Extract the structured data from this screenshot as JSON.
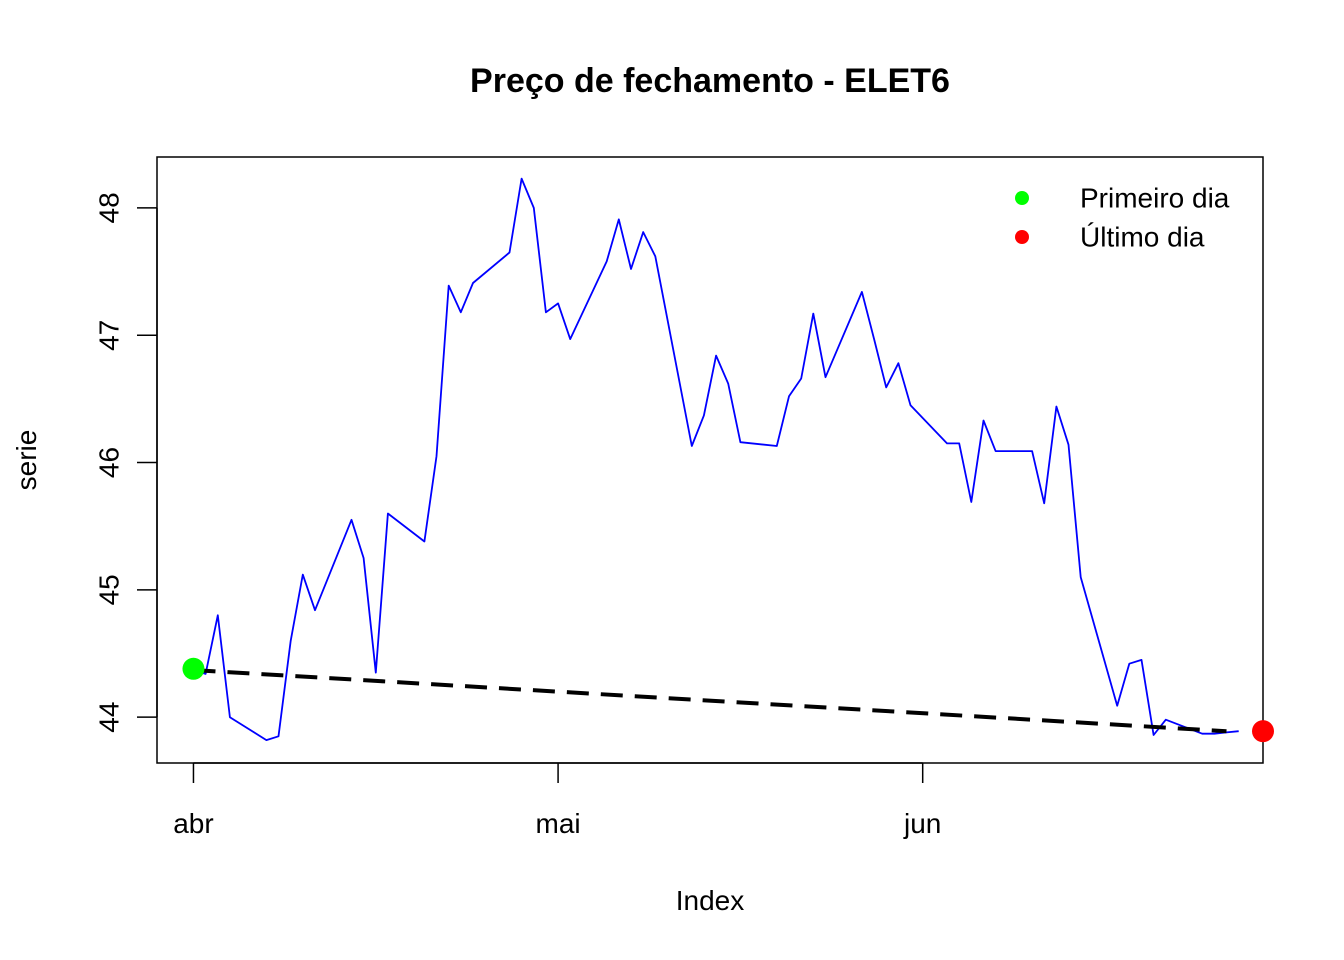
{
  "chart_data": {
    "type": "line",
    "title": "Preço de fechamento - ELET6",
    "xlabel": "Index",
    "ylabel": "serie",
    "x_ticks": [
      {
        "label": "abr",
        "date": "2018-04-02"
      },
      {
        "label": "mai",
        "date": "2018-05-02"
      },
      {
        "label": "jun",
        "date": "2018-06-01"
      }
    ],
    "y_ticks": [
      44,
      45,
      46,
      47,
      48
    ],
    "xlim": [
      "2018-03-30",
      "2018-06-29"
    ],
    "ylim": [
      43.64,
      48.4
    ],
    "grid": false,
    "legend_position": "top-right",
    "series": [
      {
        "type": "line",
        "color": "#0000ff",
        "x": [
          "2018-04-02",
          "2018-04-03",
          "2018-04-04",
          "2018-04-05",
          "2018-04-08",
          "2018-04-09",
          "2018-04-10",
          "2018-04-11",
          "2018-04-12",
          "2018-04-15",
          "2018-04-16",
          "2018-04-17",
          "2018-04-18",
          "2018-04-21",
          "2018-04-22",
          "2018-04-23",
          "2018-04-24",
          "2018-04-25",
          "2018-04-28",
          "2018-04-29",
          "2018-04-30",
          "2018-05-01",
          "2018-05-02",
          "2018-05-03",
          "2018-05-06",
          "2018-05-07",
          "2018-05-08",
          "2018-05-09",
          "2018-05-10",
          "2018-05-13",
          "2018-05-14",
          "2018-05-15",
          "2018-05-16",
          "2018-05-17",
          "2018-05-20",
          "2018-05-21",
          "2018-05-22",
          "2018-05-23",
          "2018-05-24",
          "2018-05-27",
          "2018-05-28",
          "2018-05-29",
          "2018-05-30",
          "2018-05-31",
          "2018-06-03",
          "2018-06-04",
          "2018-06-05",
          "2018-06-06",
          "2018-06-07",
          "2018-06-10",
          "2018-06-11",
          "2018-06-12",
          "2018-06-13",
          "2018-06-14",
          "2018-06-17",
          "2018-06-18",
          "2018-06-19",
          "2018-06-20",
          "2018-06-21",
          "2018-06-24",
          "2018-06-25",
          "2018-06-26",
          "2018-06-27"
        ],
        "y": [
          44.37,
          44.34,
          44.8,
          44.0,
          43.82,
          43.85,
          44.6,
          45.12,
          44.84,
          45.55,
          45.25,
          44.35,
          45.6,
          45.38,
          46.05,
          47.39,
          47.18,
          47.41,
          47.65,
          48.23,
          48.0,
          47.18,
          47.25,
          46.97,
          47.58,
          47.91,
          47.52,
          47.81,
          47.62,
          46.13,
          46.37,
          46.84,
          46.62,
          46.16,
          46.13,
          46.52,
          46.66,
          47.17,
          46.67,
          47.34,
          46.97,
          46.59,
          46.78,
          46.45,
          46.15,
          46.15,
          45.69,
          46.33,
          46.09,
          46.09,
          45.68,
          46.44,
          46.14,
          45.1,
          44.09,
          44.42,
          44.45,
          43.86,
          43.98,
          43.87,
          43.87,
          43.88,
          43.89
        ]
      },
      {
        "type": "line",
        "style": "dashed",
        "color": "#000000",
        "x": [
          "2018-04-02",
          "2018-06-26"
        ],
        "y": [
          44.37,
          43.89
        ]
      }
    ],
    "points": [
      {
        "name": "Primeiro dia",
        "color": "#00ff00",
        "x": "2018-04-02",
        "y": 44.38
      },
      {
        "name": "Último dia",
        "color": "#ff0000",
        "x": "2018-06-29",
        "y": 43.89
      }
    ],
    "legend": [
      {
        "label": "Primeiro dia",
        "color": "#00ff00"
      },
      {
        "label": "Último dia",
        "color": "#ff0000"
      }
    ]
  }
}
